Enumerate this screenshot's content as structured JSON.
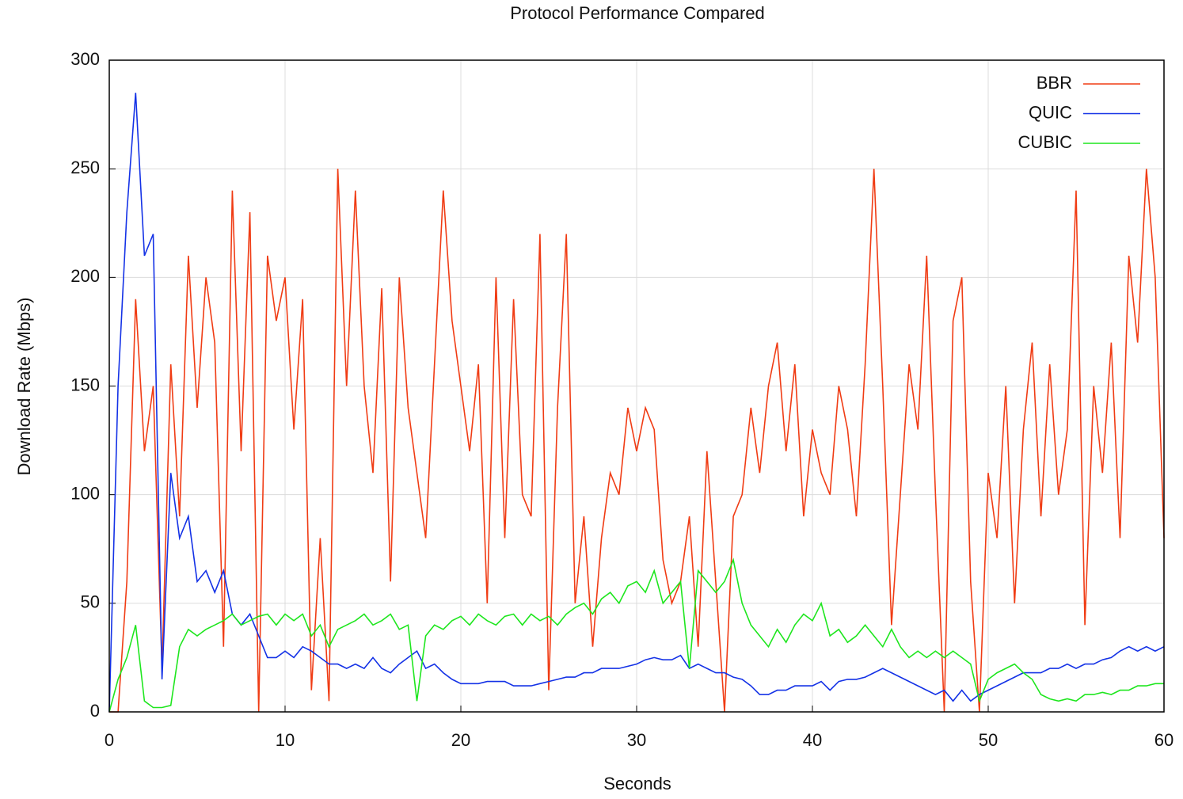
{
  "chart_data": {
    "type": "line",
    "title": "Protocol Performance Compared",
    "xlabel": "Seconds",
    "ylabel": "Download Rate (Mbps)",
    "x": [
      0,
      0.5,
      1,
      1.5,
      2,
      2.5,
      3,
      3.5,
      4,
      4.5,
      5,
      5.5,
      6,
      6.5,
      7,
      7.5,
      8,
      8.5,
      9,
      9.5,
      10,
      10.5,
      11,
      11.5,
      12,
      12.5,
      13,
      13.5,
      14,
      14.5,
      15,
      15.5,
      16,
      16.5,
      17,
      17.5,
      18,
      18.5,
      19,
      19.5,
      20,
      20.5,
      21,
      21.5,
      22,
      22.5,
      23,
      23.5,
      24,
      24.5,
      25,
      25.5,
      26,
      26.5,
      27,
      27.5,
      28,
      28.5,
      29,
      29.5,
      30,
      30.5,
      31,
      31.5,
      32,
      32.5,
      33,
      33.5,
      34,
      34.5,
      35,
      35.5,
      36,
      36.5,
      37,
      37.5,
      38,
      38.5,
      39,
      39.5,
      40,
      40.5,
      41,
      41.5,
      42,
      42.5,
      43,
      43.5,
      44,
      44.5,
      45,
      45.5,
      46,
      46.5,
      47,
      47.5,
      48,
      48.5,
      49,
      49.5,
      50,
      50.5,
      51,
      51.5,
      52,
      52.5,
      53,
      53.5,
      54,
      54.5,
      55,
      55.5,
      56,
      56.5,
      57,
      57.5,
      58,
      58.5,
      59,
      59.5,
      60
    ],
    "series": [
      {
        "name": "BBR",
        "color": "#f03c14",
        "values": [
          0,
          0,
          60,
          190,
          120,
          150,
          20,
          160,
          90,
          210,
          140,
          200,
          170,
          30,
          240,
          120,
          230,
          0,
          210,
          180,
          200,
          130,
          190,
          10,
          80,
          5,
          250,
          150,
          240,
          150,
          110,
          195,
          60,
          200,
          140,
          110,
          80,
          160,
          240,
          180,
          150,
          120,
          160,
          50,
          200,
          80,
          190,
          100,
          90,
          220,
          10,
          140,
          220,
          50,
          90,
          30,
          80,
          110,
          100,
          140,
          120,
          140,
          130,
          70,
          50,
          60,
          90,
          30,
          120,
          60,
          0,
          90,
          100,
          140,
          110,
          150,
          170,
          120,
          160,
          90,
          130,
          110,
          100,
          150,
          130,
          90,
          160,
          250,
          150,
          40,
          100,
          160,
          130,
          210,
          100,
          0,
          180,
          200,
          60,
          0,
          110,
          80,
          150,
          50,
          130,
          170,
          90,
          160,
          100,
          130,
          240,
          40,
          150,
          110,
          170,
          80,
          210,
          170,
          250,
          200,
          80
        ]
      },
      {
        "name": "QUIC",
        "color": "#1432e6",
        "values": [
          0,
          150,
          230,
          285,
          210,
          220,
          15,
          110,
          80,
          90,
          60,
          65,
          55,
          65,
          45,
          40,
          45,
          35,
          25,
          25,
          28,
          25,
          30,
          28,
          25,
          22,
          22,
          20,
          22,
          20,
          25,
          20,
          18,
          22,
          25,
          28,
          20,
          22,
          18,
          15,
          13,
          13,
          13,
          14,
          14,
          14,
          12,
          12,
          12,
          13,
          14,
          15,
          16,
          16,
          18,
          18,
          20,
          20,
          20,
          21,
          22,
          24,
          25,
          24,
          24,
          26,
          20,
          22,
          20,
          18,
          18,
          16,
          15,
          12,
          8,
          8,
          10,
          10,
          12,
          12,
          12,
          14,
          10,
          14,
          15,
          15,
          16,
          18,
          20,
          18,
          16,
          14,
          12,
          10,
          8,
          10,
          5,
          10,
          5,
          8,
          10,
          12,
          14,
          16,
          18,
          18,
          18,
          20,
          20,
          22,
          20,
          22,
          22,
          24,
          25,
          28,
          30,
          28,
          30,
          28,
          30
        ]
      },
      {
        "name": "CUBIC",
        "color": "#1ee61e",
        "values": [
          0,
          15,
          25,
          40,
          5,
          2,
          2,
          3,
          30,
          38,
          35,
          38,
          40,
          42,
          45,
          40,
          42,
          44,
          45,
          40,
          45,
          42,
          45,
          35,
          40,
          30,
          38,
          40,
          42,
          45,
          40,
          42,
          45,
          38,
          40,
          5,
          35,
          40,
          38,
          42,
          44,
          40,
          45,
          42,
          40,
          44,
          45,
          40,
          45,
          42,
          44,
          40,
          45,
          48,
          50,
          45,
          52,
          55,
          50,
          58,
          60,
          55,
          65,
          50,
          55,
          60,
          20,
          65,
          60,
          55,
          60,
          70,
          50,
          40,
          35,
          30,
          38,
          32,
          40,
          45,
          42,
          50,
          35,
          38,
          32,
          35,
          40,
          35,
          30,
          38,
          30,
          25,
          28,
          25,
          28,
          25,
          28,
          25,
          22,
          5,
          15,
          18,
          20,
          22,
          18,
          15,
          8,
          6,
          5,
          6,
          5,
          8,
          8,
          9,
          8,
          10,
          10,
          12,
          12,
          13,
          13
        ]
      }
    ],
    "xlim": [
      0,
      60
    ],
    "xticks": [
      0,
      10,
      20,
      30,
      40,
      50,
      60
    ],
    "ylim": [
      0,
      300
    ],
    "yticks": [
      0,
      50,
      100,
      150,
      200,
      250,
      300
    ],
    "grid": true,
    "legend": "upper right"
  }
}
